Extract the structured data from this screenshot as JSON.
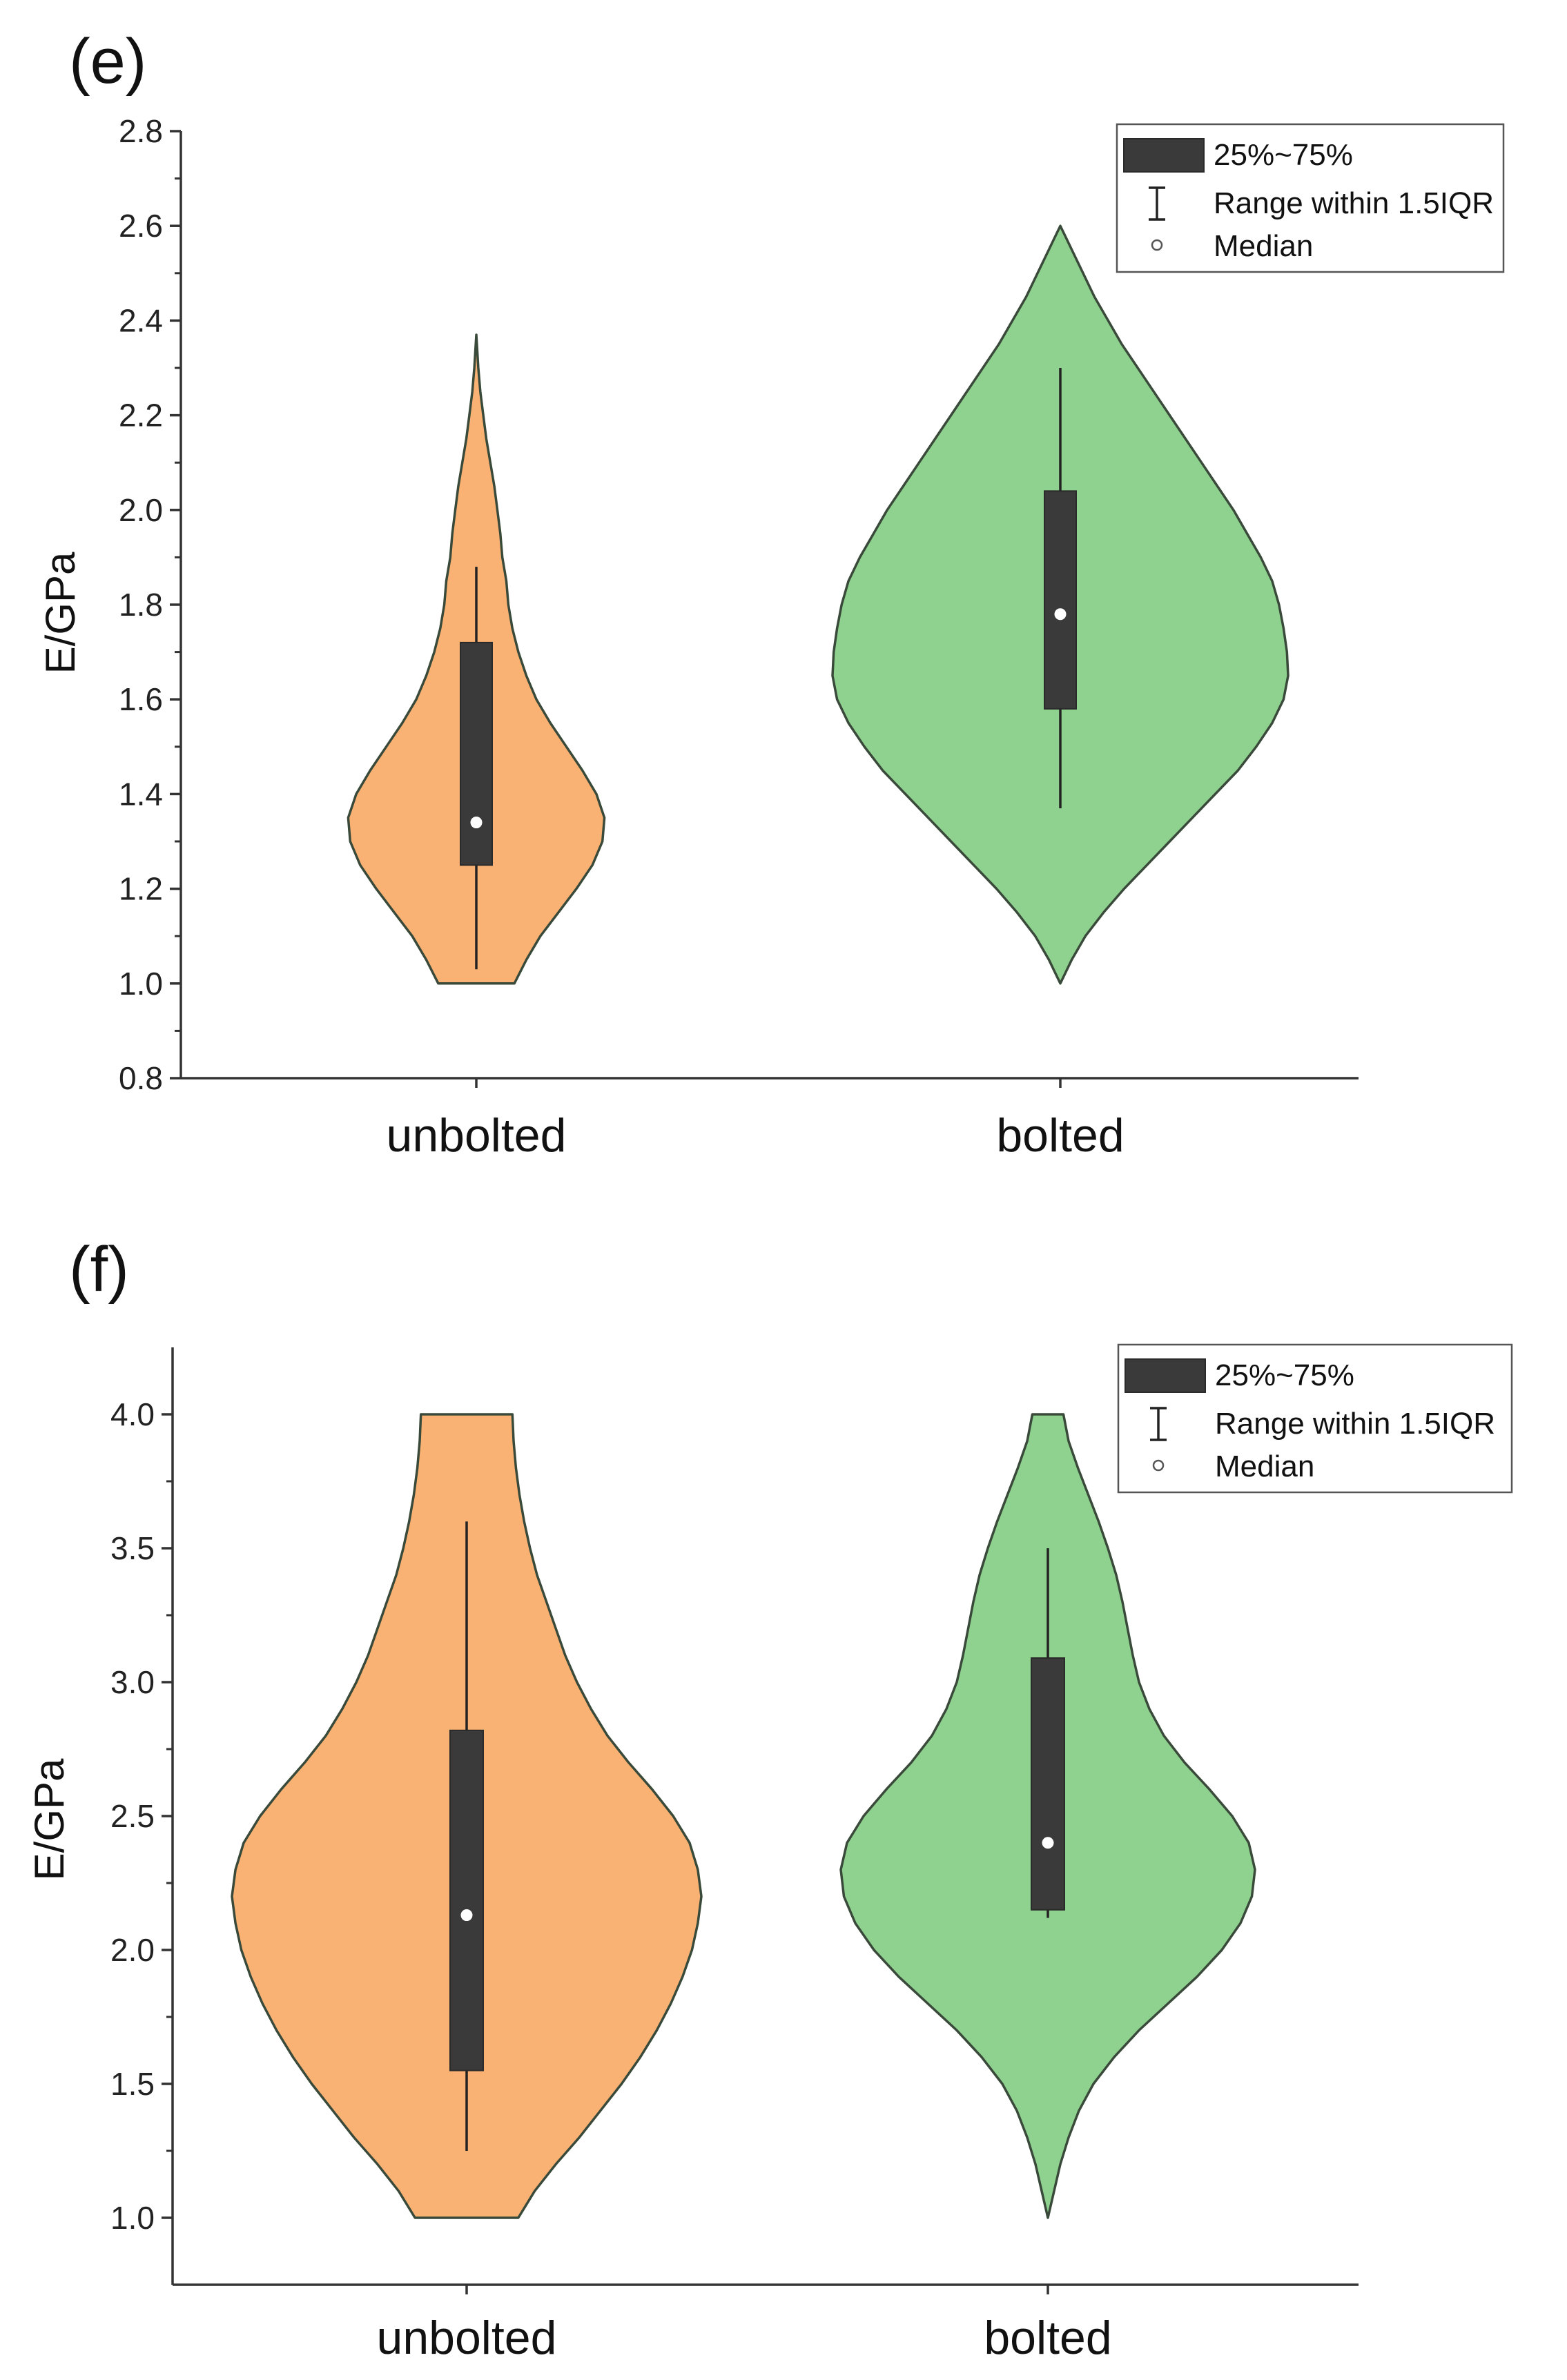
{
  "chart_data": [
    {
      "panel": "(e)",
      "type": "violin",
      "ylabel": "E/GPa",
      "ylim": [
        0.8,
        2.8
      ],
      "yticks": [
        "0.8",
        "1.0",
        "1.2",
        "1.4",
        "1.6",
        "1.8",
        "2.0",
        "2.2",
        "2.4",
        "2.6",
        "2.8"
      ],
      "categories": [
        "unbolted",
        "bolted"
      ],
      "series": [
        {
          "name": "unbolted",
          "color": "#f9b274",
          "q1": 1.25,
          "q3": 1.72,
          "median": 1.34,
          "whisker_low": 1.03,
          "whisker_high": 1.88,
          "min": 1.0,
          "max": 2.37,
          "density": [
            [
              1.0,
              0.19
            ],
            [
              1.05,
              0.25
            ],
            [
              1.1,
              0.32
            ],
            [
              1.15,
              0.41
            ],
            [
              1.2,
              0.5
            ],
            [
              1.25,
              0.58
            ],
            [
              1.3,
              0.63
            ],
            [
              1.35,
              0.64
            ],
            [
              1.4,
              0.6
            ],
            [
              1.45,
              0.53
            ],
            [
              1.5,
              0.45
            ],
            [
              1.55,
              0.37
            ],
            [
              1.6,
              0.3
            ],
            [
              1.65,
              0.25
            ],
            [
              1.7,
              0.21
            ],
            [
              1.75,
              0.18
            ],
            [
              1.8,
              0.16
            ],
            [
              1.85,
              0.15
            ],
            [
              1.9,
              0.13
            ],
            [
              1.95,
              0.12
            ],
            [
              2.0,
              0.105
            ],
            [
              2.05,
              0.09
            ],
            [
              2.1,
              0.07
            ],
            [
              2.15,
              0.05
            ],
            [
              2.2,
              0.035
            ],
            [
              2.25,
              0.02
            ],
            [
              2.3,
              0.01
            ],
            [
              2.37,
              0.0
            ]
          ]
        },
        {
          "name": "bolted",
          "color": "#8fd18f",
          "q1": 1.58,
          "q3": 2.04,
          "median": 1.78,
          "whisker_low": 1.37,
          "whisker_high": 2.3,
          "min": 1.0,
          "max": 2.6,
          "density": [
            [
              1.0,
              0.0
            ],
            [
              1.02,
              0.02
            ],
            [
              1.05,
              0.05
            ],
            [
              1.1,
              0.11
            ],
            [
              1.15,
              0.19
            ],
            [
              1.2,
              0.28
            ],
            [
              1.25,
              0.38
            ],
            [
              1.3,
              0.48
            ],
            [
              1.35,
              0.58
            ],
            [
              1.4,
              0.68
            ],
            [
              1.45,
              0.78
            ],
            [
              1.5,
              0.86
            ],
            [
              1.55,
              0.93
            ],
            [
              1.6,
              0.98
            ],
            [
              1.65,
              1.0
            ],
            [
              1.7,
              0.995
            ],
            [
              1.75,
              0.98
            ],
            [
              1.8,
              0.96
            ],
            [
              1.85,
              0.93
            ],
            [
              1.9,
              0.88
            ],
            [
              1.95,
              0.82
            ],
            [
              2.0,
              0.76
            ],
            [
              2.05,
              0.69
            ],
            [
              2.1,
              0.62
            ],
            [
              2.15,
              0.55
            ],
            [
              2.2,
              0.48
            ],
            [
              2.25,
              0.41
            ],
            [
              2.3,
              0.34
            ],
            [
              2.35,
              0.27
            ],
            [
              2.4,
              0.21
            ],
            [
              2.45,
              0.15
            ],
            [
              2.5,
              0.1
            ],
            [
              2.55,
              0.05
            ],
            [
              2.58,
              0.02
            ],
            [
              2.6,
              0.0
            ]
          ]
        }
      ],
      "legend": {
        "position": "top-right",
        "items": [
          "25%~75%",
          "Range within 1.5IQR",
          "Median"
        ]
      }
    },
    {
      "panel": "(f)",
      "type": "violin",
      "ylabel": "E/GPa",
      "ylim": [
        0.75,
        4.25
      ],
      "yticks": [
        "1.0",
        "1.5",
        "2.0",
        "2.5",
        "3.0",
        "3.5",
        "4.0"
      ],
      "categories": [
        "unbolted",
        "bolted"
      ],
      "series": [
        {
          "name": "unbolted",
          "color": "#f9b274",
          "q1": 1.55,
          "q3": 2.82,
          "median": 2.13,
          "whisker_low": 1.25,
          "whisker_high": 3.6,
          "min": 1.0,
          "max": 4.0,
          "density": [
            [
              1.0,
              0.22
            ],
            [
              1.1,
              0.29
            ],
            [
              1.2,
              0.38
            ],
            [
              1.3,
              0.48
            ],
            [
              1.4,
              0.57
            ],
            [
              1.5,
              0.66
            ],
            [
              1.6,
              0.74
            ],
            [
              1.7,
              0.81
            ],
            [
              1.8,
              0.87
            ],
            [
              1.9,
              0.92
            ],
            [
              2.0,
              0.96
            ],
            [
              2.1,
              0.985
            ],
            [
              2.2,
              1.0
            ],
            [
              2.3,
              0.985
            ],
            [
              2.4,
              0.95
            ],
            [
              2.5,
              0.88
            ],
            [
              2.6,
              0.79
            ],
            [
              2.7,
              0.69
            ],
            [
              2.8,
              0.6
            ],
            [
              2.9,
              0.53
            ],
            [
              3.0,
              0.47
            ],
            [
              3.1,
              0.42
            ],
            [
              3.2,
              0.38
            ],
            [
              3.3,
              0.34
            ],
            [
              3.4,
              0.3
            ],
            [
              3.5,
              0.27
            ],
            [
              3.6,
              0.245
            ],
            [
              3.7,
              0.225
            ],
            [
              3.8,
              0.21
            ],
            [
              3.9,
              0.2
            ],
            [
              4.0,
              0.195
            ]
          ]
        },
        {
          "name": "bolted",
          "color": "#8fd18f",
          "q1": 2.15,
          "q3": 3.09,
          "median": 2.4,
          "whisker_low": 2.12,
          "whisker_high": 3.5,
          "min": 1.0,
          "max": 4.0,
          "density": [
            [
              1.0,
              0.0
            ],
            [
              1.05,
              0.015
            ],
            [
              1.1,
              0.03
            ],
            [
              1.2,
              0.06
            ],
            [
              1.3,
              0.1
            ],
            [
              1.4,
              0.15
            ],
            [
              1.5,
              0.22
            ],
            [
              1.6,
              0.32
            ],
            [
              1.7,
              0.44
            ],
            [
              1.8,
              0.58
            ],
            [
              1.9,
              0.72
            ],
            [
              2.0,
              0.84
            ],
            [
              2.1,
              0.93
            ],
            [
              2.2,
              0.985
            ],
            [
              2.3,
              1.0
            ],
            [
              2.4,
              0.97
            ],
            [
              2.5,
              0.89
            ],
            [
              2.6,
              0.78
            ],
            [
              2.7,
              0.66
            ],
            [
              2.8,
              0.56
            ],
            [
              2.9,
              0.49
            ],
            [
              3.0,
              0.44
            ],
            [
              3.1,
              0.41
            ],
            [
              3.2,
              0.385
            ],
            [
              3.3,
              0.36
            ],
            [
              3.4,
              0.33
            ],
            [
              3.5,
              0.29
            ],
            [
              3.6,
              0.245
            ],
            [
              3.7,
              0.195
            ],
            [
              3.8,
              0.145
            ],
            [
              3.9,
              0.1
            ],
            [
              4.0,
              0.075
            ]
          ]
        }
      ],
      "legend": {
        "position": "top-right",
        "items": [
          "25%~75%",
          "Range within 1.5IQR",
          "Median"
        ]
      }
    }
  ]
}
